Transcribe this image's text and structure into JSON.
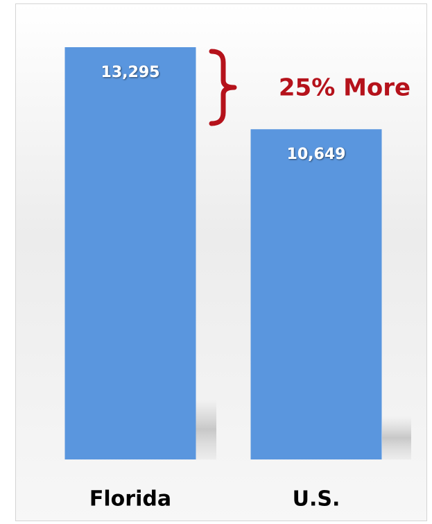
{
  "chart_data": {
    "type": "bar",
    "categories": [
      "Florida",
      "U.S."
    ],
    "values": [
      13295,
      10649
    ],
    "value_labels": [
      "13,295",
      "10,649"
    ],
    "color": "#5a96de",
    "annotation": "25% More",
    "annotation_color": "#b5121b"
  }
}
